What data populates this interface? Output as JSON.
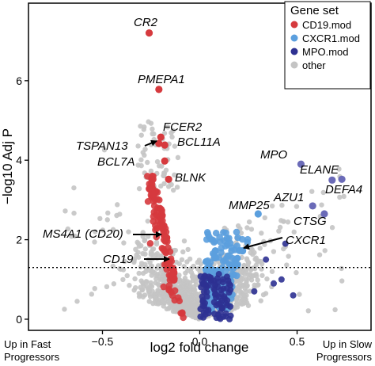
{
  "chart_data": {
    "type": "scatter",
    "title": "",
    "xlabel": "log2 fold change",
    "ylabel": "−log10 Adj P",
    "xlim": [
      -0.88,
      0.88
    ],
    "ylim": [
      -0.28,
      7.95
    ],
    "x_ticks": [
      -0.5,
      0.0,
      0.5
    ],
    "x_tick_labels": [
      "−0.5",
      "0.0",
      "0.5"
    ],
    "y_ticks": [
      0,
      2,
      4,
      6
    ],
    "y_tick_labels": [
      "0",
      "2",
      "4",
      "6"
    ],
    "grid": false,
    "significance_threshold": 1.3,
    "corner_notes": {
      "left": [
        "Up in Fast",
        "Progressors"
      ],
      "right": [
        "Up in Slow",
        "Progressors"
      ]
    },
    "legend": {
      "title": "Gene set",
      "placement": "top-right",
      "entries": [
        {
          "label": "CD19.mod",
          "color": "#d63a3e"
        },
        {
          "label": "CXCR1.mod",
          "color": "#5b9fde"
        },
        {
          "label": "MPO.mod",
          "color": "#2e3192"
        },
        {
          "label": "other",
          "color": "#c4c4c4"
        }
      ]
    },
    "highlighted_points": [
      {
        "gene": "CR2",
        "x": -0.26,
        "y": 7.2,
        "set": "CD19.mod"
      },
      {
        "gene": "PMEPA1",
        "x": -0.21,
        "y": 5.78,
        "set": "CD19.mod"
      },
      {
        "gene": "FCER2",
        "x": -0.2,
        "y": 4.58,
        "set": "CD19.mod"
      },
      {
        "gene": "TSPAN13",
        "x": -0.21,
        "y": 4.42,
        "set": "CD19.mod"
      },
      {
        "gene": "BCL11A",
        "x": -0.18,
        "y": 4.38,
        "set": "CD19.mod"
      },
      {
        "gene": "BCL7A",
        "x": -0.18,
        "y": 3.98,
        "set": "CD19.mod"
      },
      {
        "gene": "BLNK",
        "x": -0.16,
        "y": 3.52,
        "set": "CD19.mod"
      },
      {
        "gene": "MS4A1 (CD20)",
        "x": -0.17,
        "y": 2.05,
        "set": "CD19.mod"
      },
      {
        "gene": "CD19",
        "x": -0.17,
        "y": 1.4,
        "set": "CD19.mod"
      },
      {
        "gene": "MPO",
        "x": 0.52,
        "y": 3.9,
        "set": "MPO.mod"
      },
      {
        "gene": "ELANE",
        "x": 0.73,
        "y": 3.52,
        "set": "MPO.mod"
      },
      {
        "gene": "DEFA4",
        "x": 0.68,
        "y": 3.5,
        "set": "MPO.mod"
      },
      {
        "gene": "AZU1",
        "x": 0.58,
        "y": 2.85,
        "set": "MPO.mod"
      },
      {
        "gene": "MMP25",
        "x": 0.3,
        "y": 2.65,
        "set": "CXCR1.mod"
      },
      {
        "gene": "CTSG",
        "x": 0.64,
        "y": 2.65,
        "set": "MPO.mod"
      },
      {
        "gene": "CXCR1",
        "x": 0.22,
        "y": 1.72,
        "set": "CXCR1.mod"
      }
    ],
    "annotations": [
      {
        "text": "CR2"
      },
      {
        "text": "PMEPA1"
      },
      {
        "text": "FCER2"
      },
      {
        "text": "TSPAN13"
      },
      {
        "text": "BCL11A"
      },
      {
        "text": "BCL7A"
      },
      {
        "text": "BLNK"
      },
      {
        "text": "MPO"
      },
      {
        "text": "ELANE"
      },
      {
        "text": "DEFA4"
      },
      {
        "text": "AZU1"
      },
      {
        "text": "MMP25"
      },
      {
        "text": "CTSG"
      },
      {
        "text": "CXCR1"
      },
      {
        "text": "MS4A1 (CD20)"
      },
      {
        "text": "CD19"
      }
    ]
  }
}
